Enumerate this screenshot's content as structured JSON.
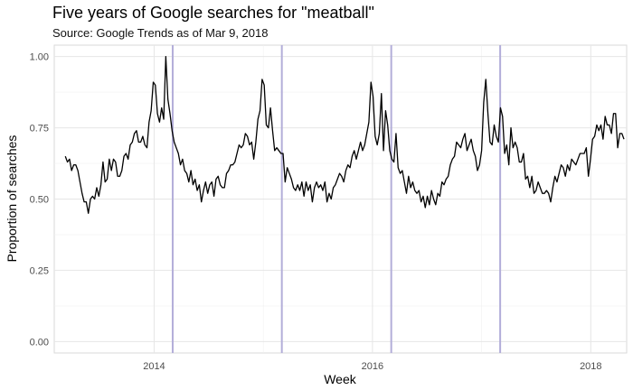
{
  "chart_data": {
    "type": "line",
    "title": "Five years of Google searches for \"meatball\"",
    "subtitle": "Source: Google Trends as of Mar 9, 2018",
    "xlabel": "Week",
    "ylabel": "Proportion of searches",
    "xlim": [
      "2013-02",
      "2018-05"
    ],
    "ylim": [
      -0.04,
      1.04
    ],
    "x_ticks": [
      2014,
      2016,
      2018
    ],
    "y_ticks": [
      "0.00",
      "0.25",
      "0.50",
      "0.75",
      "1.00"
    ],
    "grid": true,
    "line_color": "#000000",
    "vline_color": "#b3aed9",
    "reference_lines_x": [
      "2014-03-04",
      "2015-03-04",
      "2016-03-04",
      "2017-03-04"
    ],
    "x_start": "2013-03-10",
    "series": [
      {
        "values": [
          0.65,
          0.63,
          0.64,
          0.6,
          0.62,
          0.62,
          0.6,
          0.56,
          0.52,
          0.49,
          0.49,
          0.45,
          0.5,
          0.51,
          0.5,
          0.54,
          0.51,
          0.55,
          0.63,
          0.56,
          0.57,
          0.64,
          0.6,
          0.64,
          0.63,
          0.58,
          0.58,
          0.6,
          0.65,
          0.66,
          0.64,
          0.69,
          0.7,
          0.73,
          0.74,
          0.7,
          0.7,
          0.72,
          0.69,
          0.68,
          0.77,
          0.81,
          0.91,
          0.9,
          0.8,
          0.77,
          0.82,
          0.78,
          1.0,
          0.85,
          0.8,
          0.74,
          0.7,
          0.68,
          0.66,
          0.62,
          0.64,
          0.6,
          0.59,
          0.56,
          0.6,
          0.55,
          0.57,
          0.53,
          0.55,
          0.49,
          0.53,
          0.56,
          0.52,
          0.55,
          0.56,
          0.51,
          0.57,
          0.58,
          0.55,
          0.54,
          0.54,
          0.59,
          0.6,
          0.62,
          0.62,
          0.63,
          0.66,
          0.69,
          0.68,
          0.69,
          0.73,
          0.72,
          0.69,
          0.7,
          0.64,
          0.7,
          0.78,
          0.81,
          0.92,
          0.9,
          0.76,
          0.75,
          0.82,
          0.74,
          0.67,
          0.68,
          0.67,
          0.66,
          0.66,
          0.56,
          0.61,
          0.59,
          0.57,
          0.54,
          0.53,
          0.55,
          0.53,
          0.56,
          0.51,
          0.56,
          0.53,
          0.55,
          0.49,
          0.54,
          0.56,
          0.54,
          0.55,
          0.53,
          0.56,
          0.49,
          0.52,
          0.5,
          0.54,
          0.55,
          0.57,
          0.59,
          0.58,
          0.56,
          0.6,
          0.62,
          0.61,
          0.65,
          0.67,
          0.64,
          0.67,
          0.7,
          0.67,
          0.69,
          0.73,
          0.77,
          0.91,
          0.86,
          0.72,
          0.69,
          0.73,
          0.87,
          0.67,
          0.81,
          0.76,
          0.67,
          0.64,
          0.63,
          0.73,
          0.61,
          0.59,
          0.6,
          0.56,
          0.52,
          0.58,
          0.54,
          0.56,
          0.53,
          0.52,
          0.53,
          0.49,
          0.51,
          0.47,
          0.51,
          0.48,
          0.53,
          0.5,
          0.48,
          0.52,
          0.51,
          0.56,
          0.55,
          0.57,
          0.58,
          0.62,
          0.64,
          0.65,
          0.7,
          0.69,
          0.68,
          0.71,
          0.73,
          0.67,
          0.69,
          0.71,
          0.67,
          0.65,
          0.6,
          0.62,
          0.67,
          0.84,
          0.92,
          0.8,
          0.7,
          0.69,
          0.76,
          0.72,
          0.7,
          0.82,
          0.79,
          0.66,
          0.69,
          0.62,
          0.75,
          0.68,
          0.7,
          0.68,
          0.63,
          0.63,
          0.66,
          0.57,
          0.58,
          0.54,
          0.58,
          0.52,
          0.53,
          0.56,
          0.54,
          0.52,
          0.52,
          0.53,
          0.52,
          0.49,
          0.54,
          0.58,
          0.56,
          0.59,
          0.62,
          0.61,
          0.58,
          0.62,
          0.6,
          0.64,
          0.63,
          0.62,
          0.64,
          0.66,
          0.66,
          0.66,
          0.68,
          0.58,
          0.64,
          0.71,
          0.72,
          0.76,
          0.74,
          0.76,
          0.71,
          0.79,
          0.76,
          0.76,
          0.73,
          0.8,
          0.8,
          0.68,
          0.73,
          0.73,
          0.71
        ]
      }
    ]
  }
}
